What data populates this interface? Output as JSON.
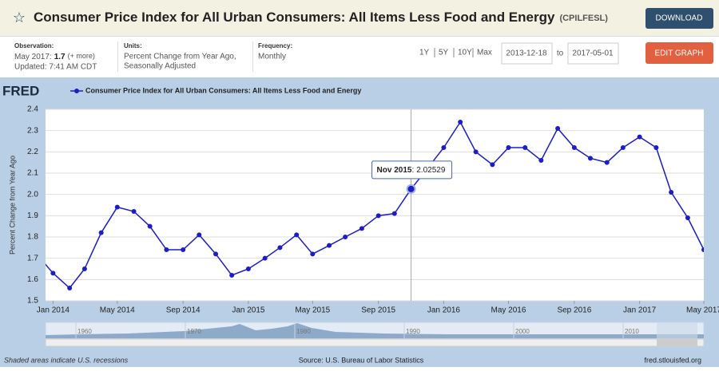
{
  "brand": "FRED",
  "header": {
    "title": "Consumer Price Index for All Urban Consumers: All Items Less Food and Energy",
    "series_id": "(CPILFESL)",
    "download": "DOWNLOAD"
  },
  "info": {
    "observation_label": "Observation:",
    "observation_date": "May 2017:",
    "observation_value": 1.7,
    "more": "(+ more)",
    "updated": "Updated: 7:41 AM CDT",
    "units_label": "Units:",
    "units": [
      "Percent Change from Year Ago,",
      "Seasonally Adjusted"
    ],
    "frequency_label": "Frequency:",
    "frequency": "Monthly"
  },
  "controls": {
    "ranges": [
      "1Y",
      "5Y",
      "10Y",
      "Max"
    ],
    "start": "2013-12-18",
    "to": "to",
    "end": "2017-05-01",
    "edit": "EDIT GRAPH"
  },
  "navigator": {
    "labels": [
      1960,
      1970,
      1980,
      1990,
      2000,
      2010
    ]
  },
  "footer": {
    "note": "Shaded areas indicate U.S. recessions",
    "source": "Source: U.S. Bureau of Labor Statistics",
    "site": "fred.stlouisfed.org"
  },
  "chart_data": {
    "type": "line",
    "y_label": "Percent Change from Year Ago",
    "x": [
      "2013-12",
      "2014-01",
      "2014-02",
      "2014-03",
      "2014-04",
      "2014-05",
      "2014-06",
      "2014-07",
      "2014-08",
      "2014-09",
      "2014-10",
      "2014-11",
      "2014-12",
      "2015-01",
      "2015-02",
      "2015-03",
      "2015-04",
      "2015-05",
      "2015-06",
      "2015-07",
      "2015-08",
      "2015-09",
      "2015-10",
      "2015-11",
      "2015-12",
      "2016-01",
      "2016-02",
      "2016-03",
      "2016-04",
      "2016-05",
      "2016-06",
      "2016-07",
      "2016-08",
      "2016-09",
      "2016-10",
      "2016-11",
      "2016-12",
      "2017-01",
      "2017-02",
      "2017-03",
      "2017-04",
      "2017-05"
    ],
    "series": [
      {
        "name": "Consumer Price Index for All Urban Consumers: All Items Less Food and Energy",
        "color": "#1c1cc9",
        "values": [
          1.72,
          1.63,
          1.56,
          1.65,
          1.82,
          1.94,
          1.92,
          1.85,
          1.74,
          1.74,
          1.81,
          1.72,
          1.62,
          1.65,
          1.7,
          1.75,
          1.81,
          1.72,
          1.76,
          1.8,
          1.84,
          1.9,
          1.91,
          2.02529,
          2.12,
          2.22,
          2.34,
          2.2,
          2.14,
          2.22,
          2.22,
          2.16,
          2.31,
          2.22,
          2.17,
          2.15,
          2.22,
          2.27,
          2.22,
          2.01,
          1.89,
          1.74
        ]
      }
    ],
    "tooltip": {
      "label": "Nov 2015"
    },
    "xlim": [
      "2013-12-18",
      "2017-05-01"
    ],
    "xticks": [
      {
        "value": "2014-01-01",
        "label": "Jan 2014"
      },
      {
        "value": "2014-05-01",
        "label": "May 2014"
      },
      {
        "value": "2014-09-01",
        "label": "Sep 2014"
      },
      {
        "value": "2015-01-01",
        "label": "Jan 2015"
      },
      {
        "value": "2015-05-01",
        "label": "May 2015"
      },
      {
        "value": "2015-09-01",
        "label": "Sep 2015"
      },
      {
        "value": "2016-01-01",
        "label": "Jan 2016"
      },
      {
        "value": "2016-05-01",
        "label": "May 2016"
      },
      {
        "value": "2016-09-01",
        "label": "Sep 2016"
      },
      {
        "value": "2017-01-01",
        "label": "Jan 2017"
      },
      {
        "value": "2017-05-01",
        "label": "May 2017"
      }
    ],
    "ylim": [
      1.5,
      2.4
    ],
    "yticks": [
      1.5,
      1.6,
      1.7,
      1.8,
      1.9,
      {
        "value": 2,
        "label": "2.0"
      },
      2.1,
      2.2,
      2.3,
      2.4
    ],
    "grid": true
  }
}
